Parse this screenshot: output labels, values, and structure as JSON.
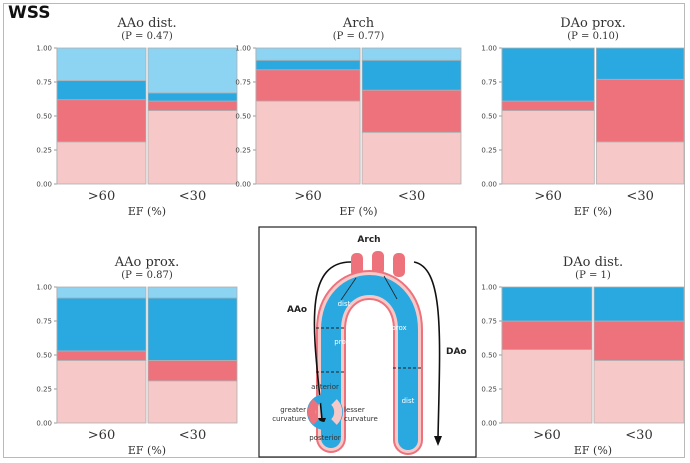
{
  "figure": {
    "title": "WSS",
    "colors": {
      "segment_1": "#f7c8c8",
      "segment_2": "#ed727c",
      "segment_3": "#2aa8e0",
      "segment_4": "#8dd3f2",
      "axis": "#999999",
      "divider": "#b0b0b0"
    }
  },
  "chart_data": [
    {
      "type": "bar",
      "stacked": true,
      "title": "AAo dist.",
      "subtitle": "(P = 0.47)",
      "p_value": "0.47",
      "categories": [
        ">60",
        "<30"
      ],
      "xlabel": "EF (%)",
      "ylim": [
        0,
        1
      ],
      "ytick_labels": [
        "0.00",
        "0.25",
        "0.50",
        "0.75",
        "1.00"
      ],
      "bar_widths": [
        1.0,
        1.0
      ],
      "series": [
        {
          "name": "segment 1",
          "values": [
            0.31,
            0.54
          ]
        },
        {
          "name": "segment 2",
          "values": [
            0.31,
            0.07
          ]
        },
        {
          "name": "segment 3",
          "values": [
            0.14,
            0.06
          ]
        },
        {
          "name": "segment 4",
          "values": [
            0.24,
            0.33
          ]
        }
      ]
    },
    {
      "type": "bar",
      "stacked": true,
      "title": "Arch",
      "subtitle": "(P = 0.77)",
      "p_value": "0.77",
      "categories": [
        ">60",
        "<30"
      ],
      "xlabel": "EF (%)",
      "ylim": [
        0,
        1
      ],
      "ytick_labels": [
        "0.00",
        "0.25",
        "0.50",
        "0.75",
        "1.00"
      ],
      "bar_widths": [
        1.0,
        0.95
      ],
      "series": [
        {
          "name": "segment 1",
          "values": [
            0.61,
            0.38
          ]
        },
        {
          "name": "segment 2",
          "values": [
            0.23,
            0.31
          ]
        },
        {
          "name": "segment 3",
          "values": [
            0.07,
            0.22
          ]
        },
        {
          "name": "segment 4",
          "values": [
            0.09,
            0.09
          ]
        }
      ]
    },
    {
      "type": "bar",
      "stacked": true,
      "title": "DAo prox.",
      "subtitle": "(P = 0.10)",
      "p_value": "0.10",
      "categories": [
        ">60",
        "<30"
      ],
      "xlabel": "EF (%)",
      "ylim": [
        0,
        1
      ],
      "ytick_labels": [
        "0.00",
        "0.25",
        "0.50",
        "0.75",
        "1.00"
      ],
      "bar_widths": [
        1.0,
        0.95
      ],
      "series": [
        {
          "name": "segment 1",
          "values": [
            0.54,
            0.31
          ]
        },
        {
          "name": "segment 2",
          "values": [
            0.07,
            0.46
          ]
        },
        {
          "name": "segment 3",
          "values": [
            0.39,
            0.23
          ]
        },
        {
          "name": "segment 4",
          "values": [
            0.0,
            0.0
          ]
        }
      ]
    },
    {
      "type": "bar",
      "stacked": true,
      "title": "AAo prox.",
      "subtitle": "(P = 0.87)",
      "p_value": "0.87",
      "categories": [
        ">60",
        "<30"
      ],
      "xlabel": "EF (%)",
      "ylim": [
        0,
        1
      ],
      "ytick_labels": [
        "0.00",
        "0.25",
        "0.50",
        "0.75",
        "1.00"
      ],
      "bar_widths": [
        1.0,
        1.0
      ],
      "series": [
        {
          "name": "segment 1",
          "values": [
            0.46,
            0.31
          ]
        },
        {
          "name": "segment 2",
          "values": [
            0.07,
            0.15
          ]
        },
        {
          "name": "segment 3",
          "values": [
            0.39,
            0.46
          ]
        },
        {
          "name": "segment 4",
          "values": [
            0.08,
            0.08
          ]
        }
      ]
    },
    {
      "type": "bar",
      "stacked": true,
      "title": "DAo dist.",
      "subtitle": "(P = 1)",
      "p_value": "1",
      "categories": [
        ">60",
        "<30"
      ],
      "xlabel": "EF (%)",
      "ylim": [
        0,
        1
      ],
      "ytick_labels": [
        "0.00",
        "0.25",
        "0.50",
        "0.75",
        "1.00"
      ],
      "bar_widths": [
        1.0,
        1.0
      ],
      "series": [
        {
          "name": "segment 1",
          "values": [
            0.54,
            0.46
          ]
        },
        {
          "name": "segment 2",
          "values": [
            0.21,
            0.29
          ]
        },
        {
          "name": "segment 3",
          "values": [
            0.25,
            0.25
          ]
        },
        {
          "name": "segment 4",
          "values": [
            0.0,
            0.0
          ]
        }
      ]
    }
  ],
  "diagram": {
    "title": "Arch",
    "left_label": "AAo",
    "right_label": "DAo",
    "segment_labels": {
      "dist_left": "dist",
      "prox_left": "prox",
      "prox_right": "prox",
      "dist_right": "dist"
    },
    "legend": {
      "top": "anterior",
      "left": "greater\ncurvature",
      "right": "lesser\ncurvature",
      "bottom": "posterior"
    }
  }
}
